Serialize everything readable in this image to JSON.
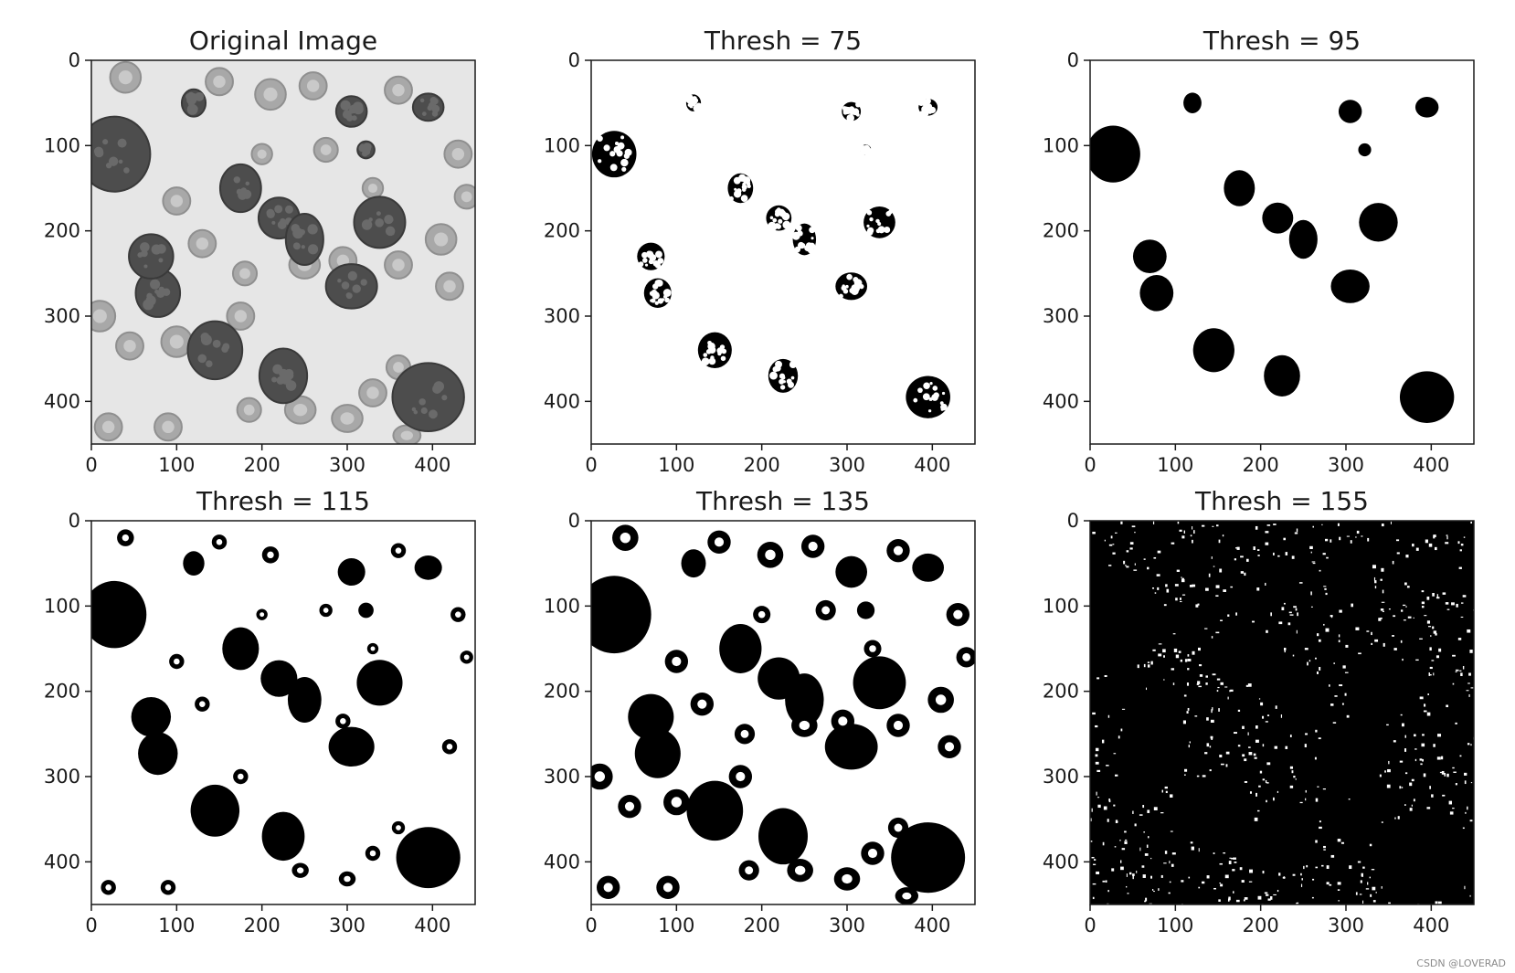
{
  "chart_data": [
    {
      "type": "heatmap",
      "title": "Original Image",
      "mode": "grayscale",
      "image_extent": [
        0,
        450
      ],
      "xticks": [
        0,
        100,
        200,
        300,
        400
      ],
      "yticks": [
        0,
        100,
        200,
        300,
        400
      ],
      "ylim_inverted": true,
      "grid": false
    },
    {
      "type": "heatmap",
      "title": "Thresh = 75",
      "mode": "binary",
      "threshold": 75,
      "image_extent": [
        0,
        450
      ],
      "xticks": [
        0,
        100,
        200,
        300,
        400
      ],
      "yticks": [
        0,
        100,
        200,
        300,
        400
      ],
      "ylim_inverted": true,
      "grid": false
    },
    {
      "type": "heatmap",
      "title": "Thresh = 95",
      "mode": "binary",
      "threshold": 95,
      "image_extent": [
        0,
        450
      ],
      "xticks": [
        0,
        100,
        200,
        300,
        400
      ],
      "yticks": [
        0,
        100,
        200,
        300,
        400
      ],
      "ylim_inverted": true,
      "grid": false
    },
    {
      "type": "heatmap",
      "title": "Thresh = 115",
      "mode": "binary",
      "threshold": 115,
      "image_extent": [
        0,
        450
      ],
      "xticks": [
        0,
        100,
        200,
        300,
        400
      ],
      "yticks": [
        0,
        100,
        200,
        300,
        400
      ],
      "ylim_inverted": true,
      "grid": false
    },
    {
      "type": "heatmap",
      "title": "Thresh = 135",
      "mode": "binary",
      "threshold": 135,
      "image_extent": [
        0,
        450
      ],
      "xticks": [
        0,
        100,
        200,
        300,
        400
      ],
      "yticks": [
        0,
        100,
        200,
        300,
        400
      ],
      "ylim_inverted": true,
      "grid": false
    },
    {
      "type": "heatmap",
      "title": "Thresh = 155",
      "mode": "binary",
      "threshold": 155,
      "image_extent": [
        0,
        450
      ],
      "xticks": [
        0,
        100,
        200,
        300,
        400
      ],
      "yticks": [
        0,
        100,
        200,
        300,
        400
      ],
      "ylim_inverted": true,
      "grid": false
    }
  ],
  "watermark": "CSDN @LOVERAD",
  "colors": {
    "foreground": "#000000",
    "background": "#ffffff",
    "axis": "#1a1a1a"
  }
}
